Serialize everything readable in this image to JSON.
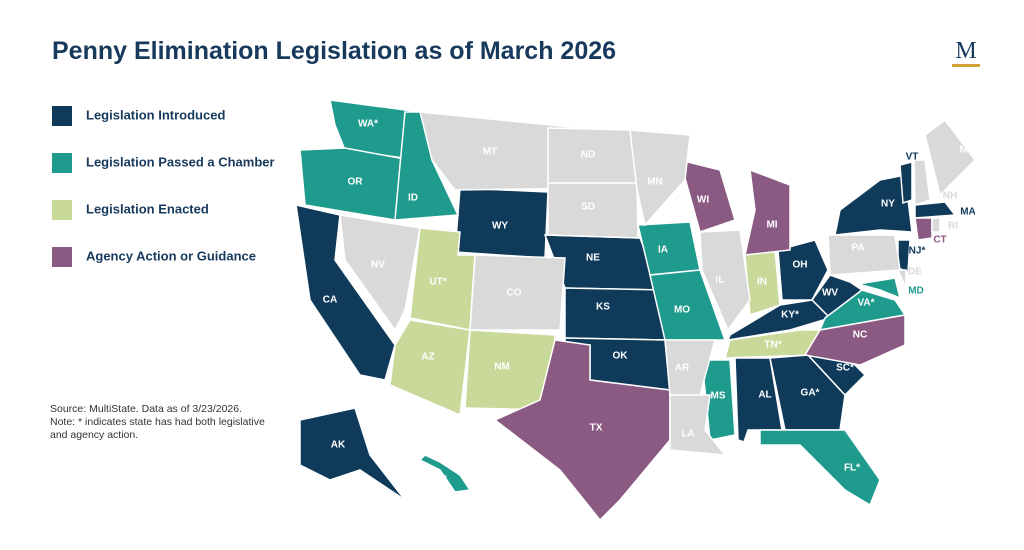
{
  "title": "Penny Elimination Legislation as of March 2026",
  "logo": "M",
  "legend": [
    {
      "label": "Legislation Introduced",
      "color": "#0f3a5a",
      "states": [
        "WY",
        "CA",
        "NE",
        "KS",
        "OK",
        "AK",
        "AL",
        "GA*",
        "SC*",
        "OH",
        "WV",
        "KY*",
        "NY",
        "VT",
        "MA",
        "NJ*"
      ]
    },
    {
      "label": "Legislation Passed a Chamber",
      "color": "#1f9b8e",
      "states": [
        "WA*",
        "OR",
        "ID",
        "IA",
        "MO",
        "MS",
        "FL*",
        "HI",
        "VA*",
        "MD"
      ]
    },
    {
      "label": "Legislation Enacted",
      "color": "#c9d99a",
      "states": [
        "UT*",
        "AZ",
        "NM",
        "IN",
        "TN*"
      ]
    },
    {
      "label": "Agency Action or Guidance",
      "color": "#8b5a83",
      "states": [
        "WI",
        "MI",
        "TX",
        "NC",
        "CT"
      ]
    }
  ],
  "unlisted_states": {
    "color": "#d9d9d9",
    "states": [
      "MT",
      "ND",
      "SD",
      "MN",
      "NV",
      "CO",
      "IL",
      "AR",
      "LA",
      "PA",
      "ME",
      "NH",
      "DE",
      "RI"
    ]
  },
  "source": "Source: MultiState. Data as of 3/23/2026.",
  "note": "Note: * indicates state has had both legislative and agency action."
}
